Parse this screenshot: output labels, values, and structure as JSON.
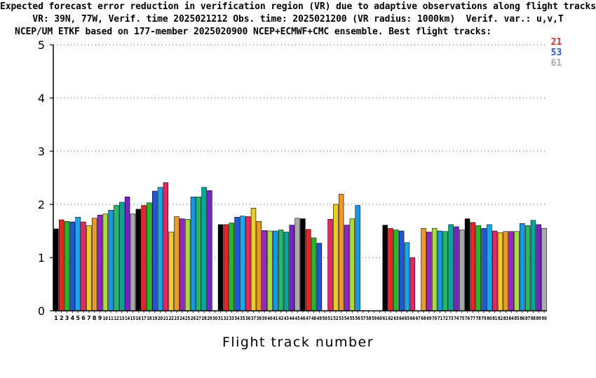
{
  "chart_data": {
    "type": "bar",
    "title_lines": [
      "Expected forecast error reduction in verification region (VR) due to adaptive observations along flight tracks.",
      "VR: 39N, 77W, Verif. time 2025021212 Obs. time: 2025021200 (VR radius: 1000km)  Verif. var.: u,v,T",
      "NCEP/UM ETKF based on 177-member 2025020900 NCEP+ECMWF+CMC ensemble. Best flight tracks:"
    ],
    "best_tracks": [
      {
        "label": "21",
        "color": "#ee2222"
      },
      {
        "label": "53",
        "color": "#2255dd"
      },
      {
        "label": "61",
        "color": "#aaaaaa"
      }
    ],
    "xlabel": "Flight track number",
    "ylabel": "",
    "ylim": [
      0,
      5
    ],
    "yticks": [
      0,
      1,
      2,
      3,
      4,
      5
    ],
    "categories": [
      "1",
      "2",
      "3",
      "4",
      "5",
      "6",
      "7",
      "8",
      "9",
      "10",
      "11",
      "12",
      "13",
      "14",
      "15",
      "16",
      "17",
      "18",
      "19",
      "20",
      "21",
      "22",
      "23",
      "24",
      "25",
      "26",
      "27",
      "28",
      "29",
      "30",
      "31",
      "32",
      "33",
      "34",
      "35",
      "36",
      "37",
      "38",
      "39",
      "40",
      "41",
      "42",
      "43",
      "44",
      "45",
      "46",
      "47",
      "48",
      "49",
      "50",
      "51",
      "52",
      "53",
      "54",
      "55",
      "56",
      "57",
      "58",
      "59",
      "60",
      "61",
      "62",
      "63",
      "64",
      "65",
      "66",
      "67",
      "68",
      "69",
      "70",
      "71",
      "72",
      "73",
      "74",
      "75",
      "76",
      "77",
      "78",
      "79",
      "80",
      "81",
      "82",
      "83",
      "84",
      "85",
      "86",
      "87",
      "88",
      "89",
      "90"
    ],
    "values": [
      1.54,
      1.71,
      1.68,
      1.67,
      1.76,
      1.67,
      1.6,
      1.74,
      1.8,
      1.82,
      1.89,
      1.98,
      2.04,
      2.14,
      1.82,
      1.91,
      1.98,
      2.03,
      2.25,
      2.32,
      2.41,
      1.48,
      1.77,
      1.73,
      1.72,
      2.14,
      2.14,
      2.32,
      2.26,
      null,
      1.62,
      1.62,
      1.65,
      1.76,
      1.78,
      1.77,
      1.93,
      1.68,
      1.51,
      1.5,
      1.5,
      1.52,
      1.48,
      1.61,
      1.74,
      1.73,
      1.53,
      1.37,
      1.27,
      null,
      1.72,
      2.0,
      2.19,
      1.61,
      1.73,
      1.98,
      0.0,
      0.0,
      0.0,
      0.0,
      1.61,
      1.55,
      1.52,
      1.5,
      1.28,
      1.0,
      null,
      1.55,
      1.48,
      1.55,
      1.5,
      1.49,
      1.62,
      1.58,
      1.52,
      1.73,
      1.66,
      1.6,
      1.55,
      1.62,
      1.5,
      1.47,
      1.49,
      1.49,
      1.49,
      1.64,
      1.6,
      1.7,
      1.62,
      1.55
    ],
    "colors": [
      "#000000",
      "#ee2222",
      "#22bb22",
      "#2255dd",
      "#11aaee",
      "#ee2266",
      "#eecc22",
      "#ee9922",
      "#9922cc",
      "#aadd33",
      "#1199ee",
      "#22bb66",
      "#00aa99",
      "#7722cc",
      "#aaaaaa"
    ],
    "grid": "dotted horizontal at y ticks"
  }
}
